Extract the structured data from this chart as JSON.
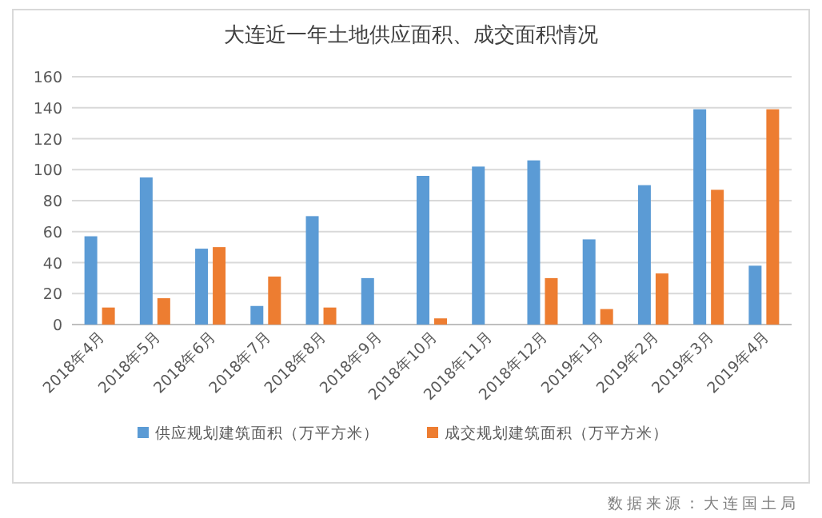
{
  "chart_data": {
    "type": "bar",
    "title": "大连近一年土地供应面积、成交面积情况",
    "categories": [
      "2018年4月",
      "2018年5月",
      "2018年6月",
      "2018年7月",
      "2018年8月",
      "2018年9月",
      "2018年10月",
      "2018年11月",
      "2018年12月",
      "2019年1月",
      "2019年2月",
      "2019年3月",
      "2019年4月"
    ],
    "series": [
      {
        "name": "供应规划建筑面积（万平方米）",
        "color": "#5b9bd5",
        "values": [
          57,
          95,
          49,
          12,
          70,
          30,
          96,
          102,
          106,
          55,
          90,
          139,
          38
        ]
      },
      {
        "name": "成交规划建筑面积（万平方米）",
        "color": "#ed7d31",
        "values": [
          11,
          17,
          50,
          31,
          11,
          null,
          4,
          null,
          30,
          10,
          33,
          87,
          139
        ]
      }
    ],
    "ylim": [
      0,
      160
    ],
    "yticks": [
      0,
      20,
      40,
      60,
      80,
      100,
      120,
      140,
      160
    ],
    "grid": "y",
    "legend": "bottom",
    "annotations": [
      "数据来源：大连国土局"
    ]
  }
}
